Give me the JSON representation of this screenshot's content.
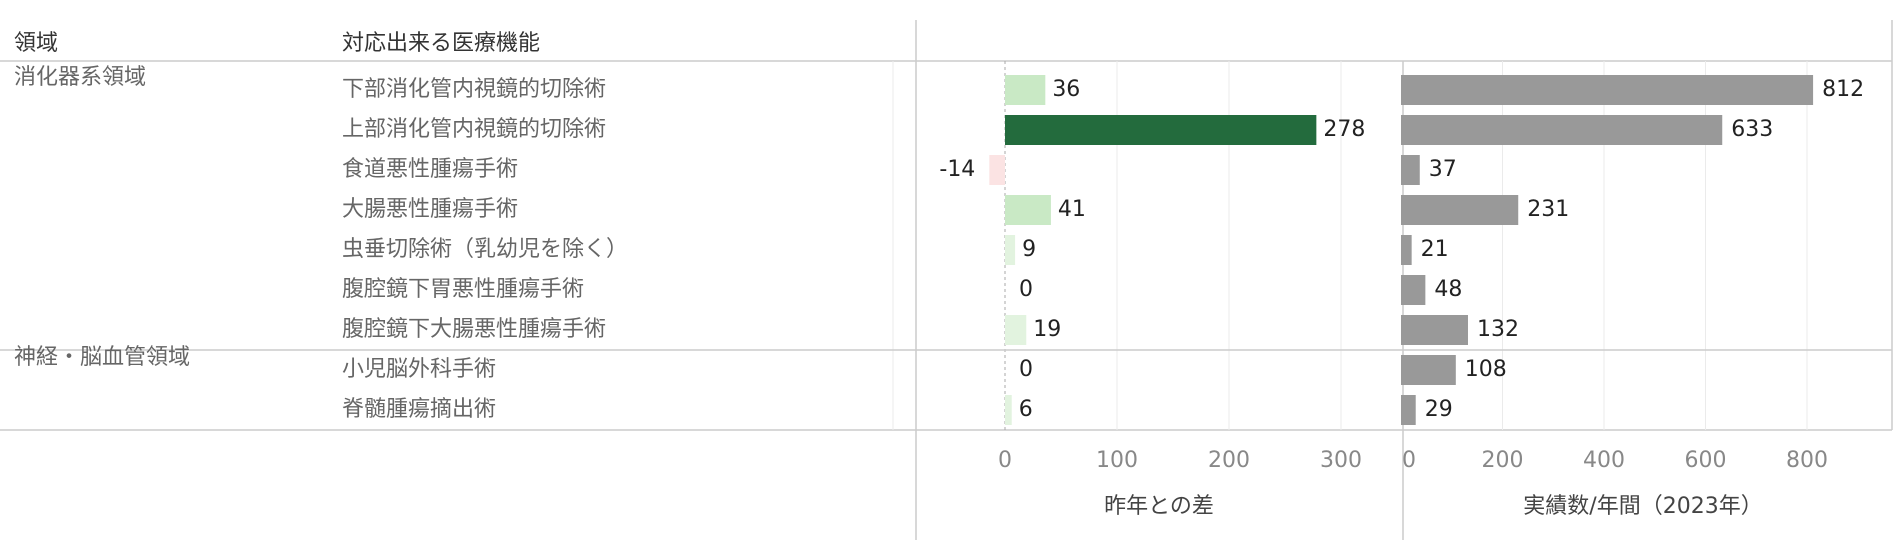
{
  "headers": {
    "domain": "領域",
    "function": "対応出来る医療機能"
  },
  "colors": {
    "dark_green": "#236b3d",
    "light_green": "#c9e9c5",
    "pale_green": "#e2f3df",
    "pale_red": "#fbe3e3",
    "gray_bar": "#999999",
    "grid": "#ebebeb",
    "rule": "#cccccc",
    "label_text": "#666666",
    "value_text": "#222222"
  },
  "chart_data": [
    {
      "type": "bar",
      "orientation": "horizontal",
      "xlabel": "昨年との差",
      "xlim": [
        -70,
        350
      ],
      "ticks": [
        0,
        100,
        200,
        300
      ],
      "tick_labels": [
        "0",
        "100",
        "200",
        "300"
      ],
      "zero_line": "dashed",
      "groups": [
        {
          "name": "消化器系領域",
          "categories": [
            "下部消化管内視鏡的切除術",
            "上部消化管内視鏡的切除術",
            "食道悪性腫瘍手術",
            "大腸悪性腫瘍手術",
            "虫垂切除術（乳幼児を除く）",
            "腹腔鏡下胃悪性腫瘍手術",
            "腹腔鏡下大腸悪性腫瘍手術"
          ]
        },
        {
          "name": "神経・脳血管領域",
          "categories": [
            "小児脳外科手術",
            "脊髄腫瘍摘出術"
          ]
        }
      ],
      "categories": [
        "下部消化管内視鏡的切除術",
        "上部消化管内視鏡的切除術",
        "食道悪性腫瘍手術",
        "大腸悪性腫瘍手術",
        "虫垂切除術（乳幼児を除く）",
        "腹腔鏡下胃悪性腫瘍手術",
        "腹腔鏡下大腸悪性腫瘍手術",
        "小児脳外科手術",
        "脊髄腫瘍摘出術"
      ],
      "values": [
        36,
        278,
        -14,
        41,
        9,
        0,
        19,
        0,
        6
      ],
      "value_labels": [
        "36",
        "278",
        "-14",
        "41",
        "9",
        "0",
        "19",
        "0",
        "6"
      ],
      "color_encoding": "diverging green-red by value"
    },
    {
      "type": "bar",
      "orientation": "horizontal",
      "xlabel": "実績数/年間（2023年）",
      "xlim": [
        0,
        940
      ],
      "ticks": [
        0,
        200,
        400,
        600,
        800
      ],
      "tick_labels": [
        "0",
        "200",
        "400",
        "600",
        "800"
      ],
      "categories": [
        "下部消化管内視鏡的切除術",
        "上部消化管内視鏡的切除術",
        "食道悪性腫瘍手術",
        "大腸悪性腫瘍手術",
        "虫垂切除術（乳幼児を除く）",
        "腹腔鏡下胃悪性腫瘍手術",
        "腹腔鏡下大腸悪性腫瘍手術",
        "小児脳外科手術",
        "脊髄腫瘍摘出術"
      ],
      "values": [
        812,
        633,
        37,
        231,
        21,
        48,
        132,
        108,
        29
      ],
      "value_labels": [
        "812",
        "633",
        "37",
        "231",
        "21",
        "48",
        "132",
        "108",
        "29"
      ]
    }
  ]
}
